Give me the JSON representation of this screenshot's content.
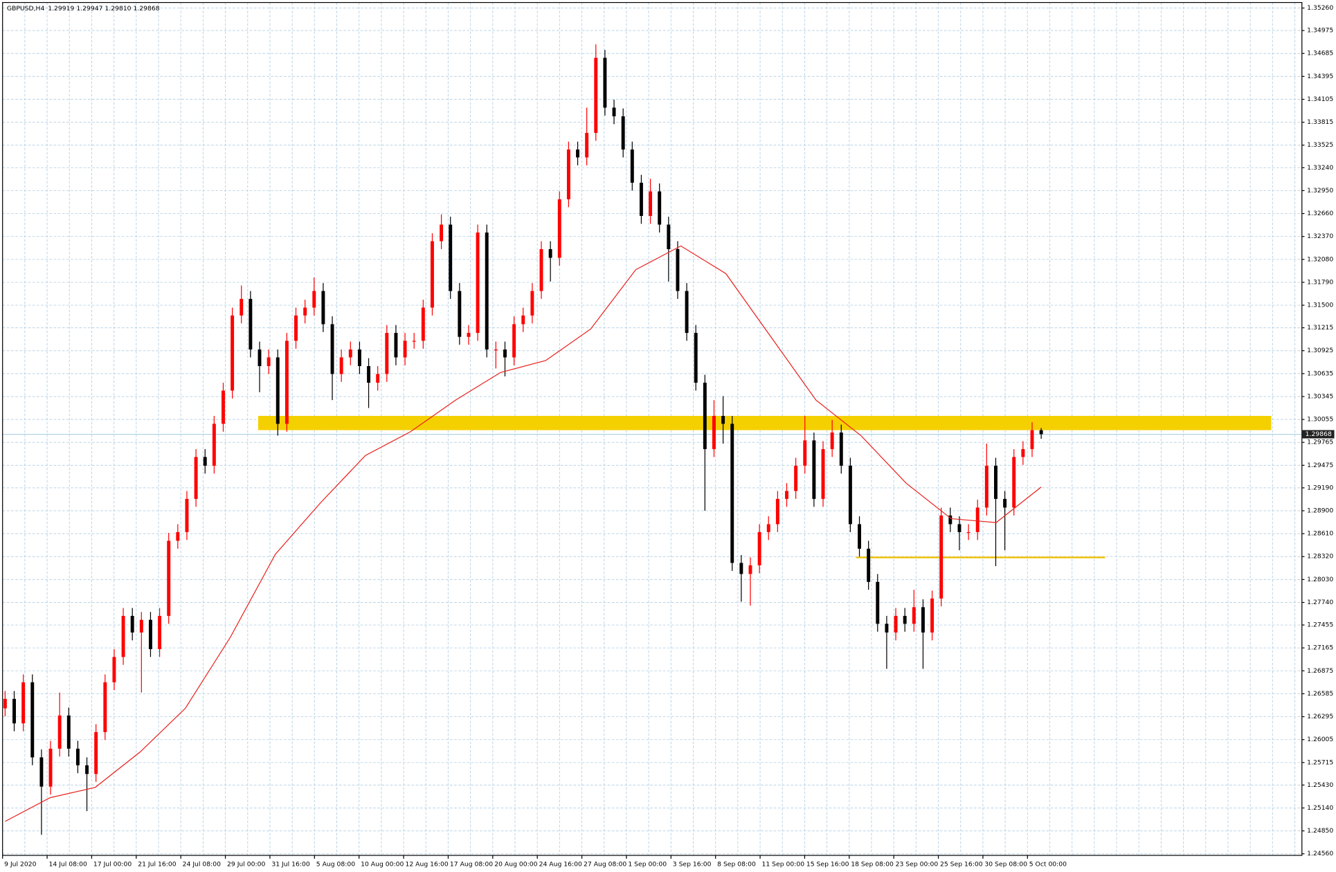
{
  "chart_data": {
    "type": "candlestick",
    "title": "GBPUSD,H4",
    "title_values": "1.29919 1.29947 1.29810 1.29868",
    "up_color": "#ff0000",
    "down_color": "#000000",
    "open": [
      1.264,
      1.2652,
      1.2621,
      1.2673,
      1.2578,
      1.2541,
      1.2589,
      1.2631,
      1.2589,
      1.2568,
      1.2557,
      1.261,
      1.2673,
      1.2705,
      1.2757,
      1.2736,
      1.2752,
      1.2715,
      1.2757,
      1.2852,
      1.2863,
      1.2905,
      1.2958,
      1.2947,
      1.3,
      1.3042,
      1.3137,
      1.3158,
      1.3094,
      1.3073,
      1.3084,
      1.3,
      1.3105,
      1.3137,
      1.3147,
      1.3168,
      1.3126,
      1.3063,
      1.3084,
      1.3094,
      1.3073,
      1.3052,
      1.3063,
      1.3115,
      1.3084,
      1.3105,
      1.3105,
      1.3147,
      1.3231,
      1.3252,
      1.3168,
      1.311,
      1.3115,
      1.3242,
      1.3094,
      1.3094,
      1.3084,
      1.3126,
      1.3137,
      1.3168,
      1.3221,
      1.321,
      1.3284,
      1.3347,
      1.3337,
      1.3368,
      1.3463,
      1.34,
      1.3389,
      1.3347,
      1.3305,
      1.3263,
      1.3294,
      1.3252,
      1.3221,
      1.3168,
      1.3115,
      1.3052,
      1.2968,
      1.301,
      1.3,
      1.2824,
      1.281,
      1.2821,
      1.2863,
      1.2873,
      1.2905,
      1.2915,
      1.2947,
      1.2979,
      1.2905,
      1.2968,
      1.2989,
      1.2947,
      1.2873,
      1.2842,
      1.28,
      1.2747,
      1.2736,
      1.2757,
      1.2747,
      1.2768,
      1.2736,
      1.2779,
      1.2884,
      1.2873,
      1.2863,
      1.2863,
      1.2894,
      1.2947,
      1.2905,
      1.2894,
      1.2958,
      1.2968,
      1.29919
    ],
    "high": [
      1.2662,
      1.2662,
      1.2683,
      1.2683,
      1.2588,
      1.2599,
      1.266,
      1.2641,
      1.2599,
      1.2578,
      1.262,
      1.2683,
      1.2715,
      1.2767,
      1.2767,
      1.2762,
      1.2762,
      1.2767,
      1.2862,
      1.2873,
      1.2915,
      1.2968,
      1.2968,
      1.301,
      1.3052,
      1.3147,
      1.3175,
      1.3168,
      1.3104,
      1.3094,
      1.3094,
      1.3115,
      1.3147,
      1.3157,
      1.3185,
      1.3178,
      1.3136,
      1.3094,
      1.3104,
      1.3104,
      1.3083,
      1.3073,
      1.3125,
      1.3125,
      1.3115,
      1.3115,
      1.3157,
      1.3241,
      1.3265,
      1.3262,
      1.3178,
      1.3125,
      1.3252,
      1.3252,
      1.3104,
      1.3104,
      1.3136,
      1.3147,
      1.3178,
      1.3231,
      1.3231,
      1.3294,
      1.3357,
      1.3357,
      1.34,
      1.348,
      1.3473,
      1.341,
      1.3399,
      1.3357,
      1.3315,
      1.331,
      1.3304,
      1.3262,
      1.3231,
      1.3178,
      1.3125,
      1.3062,
      1.303,
      1.3035,
      1.301,
      1.2834,
      1.2831,
      1.2873,
      1.2883,
      1.2915,
      1.2925,
      1.2957,
      1.301,
      1.2989,
      1.2978,
      1.3005,
      1.2999,
      1.2957,
      1.2883,
      1.2852,
      1.281,
      1.2757,
      1.2767,
      1.2767,
      1.279,
      1.2778,
      1.2789,
      1.2894,
      1.2894,
      1.2883,
      1.2873,
      1.2904,
      1.2975,
      1.2957,
      1.2915,
      1.2968,
      1.2978,
      1.3002,
      1.29947
    ],
    "low": [
      1.263,
      1.2611,
      1.2611,
      1.2568,
      1.248,
      1.2531,
      1.2579,
      1.2579,
      1.2558,
      1.251,
      1.2547,
      1.26,
      1.2663,
      1.2695,
      1.2726,
      1.266,
      1.2705,
      1.2705,
      1.2747,
      1.2842,
      1.2853,
      1.2895,
      1.2937,
      1.2937,
      1.299,
      1.3032,
      1.3127,
      1.3084,
      1.304,
      1.3063,
      1.2985,
      1.299,
      1.3095,
      1.3127,
      1.3137,
      1.3116,
      1.303,
      1.3053,
      1.3074,
      1.3063,
      1.302,
      1.3042,
      1.3053,
      1.3074,
      1.3074,
      1.3095,
      1.3095,
      1.3137,
      1.3221,
      1.3158,
      1.31,
      1.31,
      1.3105,
      1.3084,
      1.307,
      1.306,
      1.3074,
      1.3116,
      1.3127,
      1.3158,
      1.318,
      1.32,
      1.3274,
      1.3327,
      1.3327,
      1.3358,
      1.339,
      1.3379,
      1.3337,
      1.3295,
      1.3253,
      1.3253,
      1.3242,
      1.318,
      1.3158,
      1.3105,
      1.3042,
      1.289,
      1.2958,
      1.2975,
      1.2814,
      1.2775,
      1.277,
      1.2811,
      1.2853,
      1.2863,
      1.2895,
      1.2905,
      1.2937,
      1.2895,
      1.2895,
      1.2958,
      1.2937,
      1.2863,
      1.2832,
      1.279,
      1.2737,
      1.269,
      1.2726,
      1.2737,
      1.2737,
      1.269,
      1.2726,
      1.2769,
      1.2863,
      1.284,
      1.2853,
      1.2853,
      1.2884,
      1.282,
      1.284,
      1.2884,
      1.2948,
      1.2958,
      1.2981
    ],
    "close": [
      1.2652,
      1.2621,
      1.2673,
      1.2578,
      1.2541,
      1.2589,
      1.2631,
      1.2589,
      1.2568,
      1.2557,
      1.261,
      1.2673,
      1.2705,
      1.2757,
      1.2736,
      1.2752,
      1.2715,
      1.2757,
      1.2852,
      1.2863,
      1.2905,
      1.2958,
      1.2947,
      1.3,
      1.3042,
      1.3137,
      1.3158,
      1.3094,
      1.3073,
      1.3084,
      1.3,
      1.3105,
      1.3137,
      1.3147,
      1.3168,
      1.3126,
      1.3063,
      1.3084,
      1.3094,
      1.3073,
      1.3052,
      1.3063,
      1.3115,
      1.3084,
      1.3105,
      1.3105,
      1.3147,
      1.3231,
      1.3252,
      1.3168,
      1.311,
      1.3115,
      1.3242,
      1.3094,
      1.3094,
      1.3084,
      1.3126,
      1.3137,
      1.3168,
      1.3221,
      1.321,
      1.3284,
      1.3347,
      1.3337,
      1.3368,
      1.3463,
      1.34,
      1.3389,
      1.3347,
      1.3305,
      1.3263,
      1.3294,
      1.3252,
      1.3221,
      1.3168,
      1.3115,
      1.3052,
      1.2968,
      1.301,
      1.3,
      1.2824,
      1.281,
      1.2821,
      1.2863,
      1.2873,
      1.2905,
      1.2915,
      1.2947,
      1.2979,
      1.2905,
      1.2968,
      1.2989,
      1.2947,
      1.2873,
      1.2842,
      1.28,
      1.2747,
      1.2736,
      1.2757,
      1.2747,
      1.2768,
      1.2736,
      1.2779,
      1.2884,
      1.2873,
      1.2863,
      1.2863,
      1.2894,
      1.2947,
      1.2905,
      1.2894,
      1.2958,
      1.2968,
      1.29919,
      1.29868
    ],
    "ma": {
      "color": "#e8201c",
      "values": [
        1.2497,
        1.2527,
        1.254,
        1.2585,
        1.264,
        1.273,
        1.2835,
        1.29,
        1.296,
        1.299,
        1.303,
        1.3065,
        1.308,
        1.312,
        1.3195,
        1.3225,
        1.319,
        1.311,
        1.303,
        1.2985,
        1.2925,
        1.288,
        1.2875,
        1.292
      ]
    },
    "zones": [
      {
        "low": 1.2992,
        "high": 1.301,
        "color": "#f5d000"
      }
    ],
    "levels": [
      {
        "value": 1.2831,
        "color": "#f0c000"
      }
    ],
    "price_line_color": "#9cc6e0",
    "ylim": [
      1.2454,
      1.3533
    ],
    "yticks": [
      {
        "value": 1.3526,
        "label": "1.35260"
      },
      1.34975,
      1.34685,
      1.34395,
      1.34105,
      1.33815,
      1.33525,
      {
        "value": 1.3324,
        "label": "1.33240"
      },
      {
        "value": 1.3295,
        "label": "1.32950"
      },
      {
        "value": 1.3266,
        "label": "1.32660"
      },
      {
        "value": 1.3237,
        "label": "1.32370"
      },
      {
        "value": 1.3208,
        "label": "1.32080"
      },
      {
        "value": 1.3179,
        "label": "1.31790"
      },
      {
        "value": 1.315,
        "label": "1.31500"
      },
      1.31215,
      1.30925,
      1.30635,
      1.30345,
      1.30055,
      1.29765,
      1.29475,
      {
        "value": 1.2919,
        "label": "1.29190"
      },
      {
        "value": 1.289,
        "label": "1.28900"
      },
      {
        "value": 1.2861,
        "label": "1.28610"
      },
      {
        "value": 1.2832,
        "label": "1.28320"
      },
      {
        "value": 1.2803,
        "label": "1.28030"
      },
      {
        "value": 1.2774,
        "label": "1.27740"
      },
      1.27455,
      1.27165,
      1.26875,
      1.26585,
      1.26295,
      1.26005,
      1.25715,
      {
        "value": 1.2543,
        "label": "1.25430"
      },
      {
        "value": 1.2514,
        "label": "1.25140"
      },
      {
        "value": 1.2485,
        "label": "1.24850"
      },
      {
        "value": 1.2456,
        "label": "1.24560"
      }
    ],
    "x_labels": [
      "9 Jul 2020",
      "14 Jul 08:00",
      "17 Jul 00:00",
      "21 Jul 16:00",
      "24 Jul 08:00",
      "29 Jul 00:00",
      "31 Jul 16:00",
      "5 Aug 08:00",
      "10 Aug 00:00",
      "12 Aug 16:00",
      "17 Aug 08:00",
      "20 Aug 00:00",
      "24 Aug 16:00",
      "27 Aug 08:00",
      "1 Sep 00:00",
      "3 Sep 16:00",
      "8 Sep 08:00",
      "11 Sep 00:00",
      "15 Sep 16:00",
      "18 Sep 08:00",
      "23 Sep 00:00",
      "25 Sep 16:00",
      "30 Sep 08:00",
      "5 Oct 00:00"
    ],
    "grid": true
  }
}
